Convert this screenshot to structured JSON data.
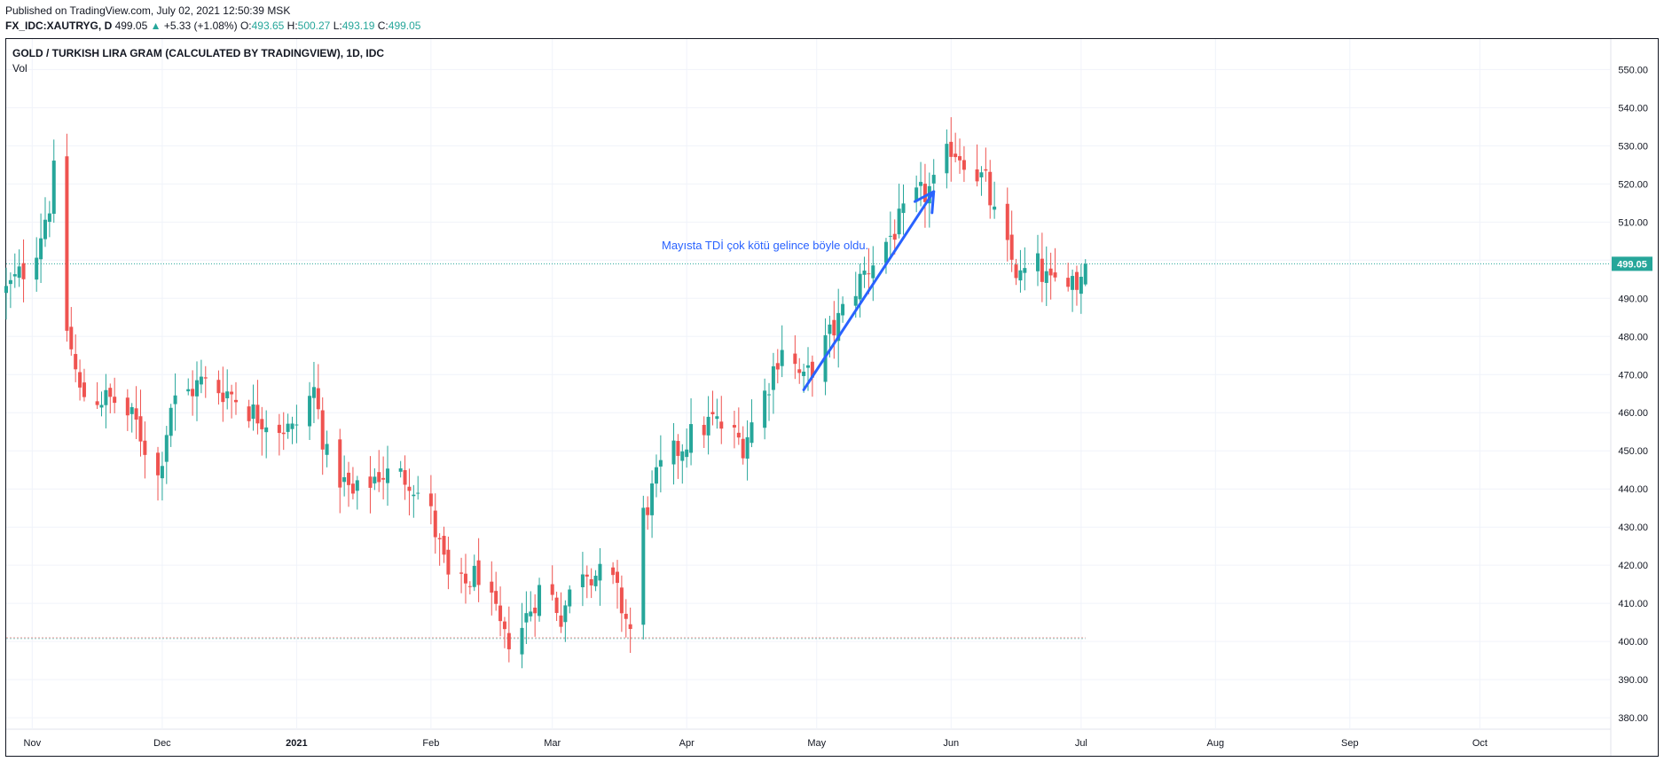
{
  "header": {
    "published": "Published on TradingView.com, July 02, 2021 12:50:39 MSK",
    "symbol": "FX_IDC:XAUTRYG, D",
    "last": "499.05",
    "change_arrow": "▲",
    "change": "+5.33 (+1.08%)",
    "open_label": "O:",
    "open": "493.65",
    "high_label": "H:",
    "high": "500.27",
    "low_label": "L:",
    "low": "493.19",
    "close_label": "C:",
    "close": "499.05"
  },
  "legend": {
    "title": "GOLD / TURKISH LIRA GRAM (CALCULATED BY TRADINGVIEW), 1D, IDC",
    "vol": "Vol"
  },
  "colors": {
    "up": "#26a69a",
    "down": "#ef5350",
    "grid": "#f0f3fa",
    "axis_text": "#131722",
    "price_line": "#26a69a",
    "annotation": "#2962ff"
  },
  "annotation": {
    "text": "Mayısta TDİ çok kötü gelince böyle oldu."
  },
  "chart_data": {
    "type": "candlestick",
    "y_axis_side": "right",
    "ylim": [
      377,
      558
    ],
    "yticks": [
      "380.00",
      "390.00",
      "400.00",
      "410.00",
      "420.00",
      "430.00",
      "440.00",
      "450.00",
      "460.00",
      "470.00",
      "480.00",
      "490.00",
      "500.00",
      "510.00",
      "520.00",
      "530.00",
      "540.00",
      "550.00"
    ],
    "xlim": [
      "2020-10-26",
      "2021-10-31"
    ],
    "xticks": [
      {
        "date": "2020-11-01",
        "label": "Nov",
        "bold": false
      },
      {
        "date": "2020-12-01",
        "label": "Dec",
        "bold": false
      },
      {
        "date": "2021-01-01",
        "label": "2021",
        "bold": true
      },
      {
        "date": "2021-02-01",
        "label": "Feb",
        "bold": false
      },
      {
        "date": "2021-03-01",
        "label": "Mar",
        "bold": false
      },
      {
        "date": "2021-04-01",
        "label": "Apr",
        "bold": false
      },
      {
        "date": "2021-05-01",
        "label": "May",
        "bold": false
      },
      {
        "date": "2021-06-01",
        "label": "Jun",
        "bold": false
      },
      {
        "date": "2021-07-01",
        "label": "Jul",
        "bold": false
      },
      {
        "date": "2021-08-01",
        "label": "Aug",
        "bold": false
      },
      {
        "date": "2021-09-01",
        "label": "Sep",
        "bold": false
      },
      {
        "date": "2021-10-01",
        "label": "Oct",
        "bold": false
      }
    ],
    "last_price": 499.05,
    "last_price_label": "499.05",
    "support_level": 401,
    "arrow_from": {
      "date": "2021-04-28",
      "price": 466
    },
    "arrow_to": {
      "date": "2021-05-28",
      "price": 518
    },
    "closes_start": "2020-10-26",
    "closes_end": "2021-07-02",
    "closes": [
      {
        "date": "2020-10-26",
        "c": 492
      },
      {
        "date": "2020-11-01",
        "c": 500
      },
      {
        "date": "2020-11-05",
        "c": 515
      },
      {
        "date": "2020-11-08",
        "c": 537
      },
      {
        "date": "2020-11-09",
        "c": 482
      },
      {
        "date": "2020-11-12",
        "c": 465
      },
      {
        "date": "2020-11-20",
        "c": 463
      },
      {
        "date": "2020-11-25",
        "c": 457
      },
      {
        "date": "2020-11-30",
        "c": 443
      },
      {
        "date": "2020-12-03",
        "c": 462
      },
      {
        "date": "2020-12-10",
        "c": 468
      },
      {
        "date": "2020-12-17",
        "c": 465
      },
      {
        "date": "2020-12-22",
        "c": 460
      },
      {
        "date": "2020-12-31",
        "c": 455
      },
      {
        "date": "2021-01-05",
        "c": 466
      },
      {
        "date": "2021-01-08",
        "c": 448
      },
      {
        "date": "2021-01-14",
        "c": 438
      },
      {
        "date": "2021-01-20",
        "c": 444
      },
      {
        "date": "2021-01-27",
        "c": 443
      },
      {
        "date": "2021-02-01",
        "c": 433
      },
      {
        "date": "2021-02-06",
        "c": 412
      },
      {
        "date": "2021-02-12",
        "c": 418
      },
      {
        "date": "2021-02-18",
        "c": 400
      },
      {
        "date": "2021-02-22",
        "c": 404
      },
      {
        "date": "2021-02-27",
        "c": 416
      },
      {
        "date": "2021-03-03",
        "c": 407
      },
      {
        "date": "2021-03-08",
        "c": 420
      },
      {
        "date": "2021-03-15",
        "c": 415
      },
      {
        "date": "2021-03-19",
        "c": 403
      },
      {
        "date": "2021-03-22",
        "c": 433
      },
      {
        "date": "2021-03-26",
        "c": 445
      },
      {
        "date": "2021-04-01",
        "c": 453
      },
      {
        "date": "2021-04-07",
        "c": 458
      },
      {
        "date": "2021-04-14",
        "c": 452
      },
      {
        "date": "2021-04-19",
        "c": 465
      },
      {
        "date": "2021-04-23",
        "c": 478
      },
      {
        "date": "2021-04-28",
        "c": 468
      },
      {
        "date": "2021-05-05",
        "c": 482
      },
      {
        "date": "2021-05-10",
        "c": 493
      },
      {
        "date": "2021-05-14",
        "c": 500
      },
      {
        "date": "2021-05-19",
        "c": 508
      },
      {
        "date": "2021-05-24",
        "c": 516
      },
      {
        "date": "2021-05-29",
        "c": 520
      },
      {
        "date": "2021-06-01",
        "c": 530
      },
      {
        "date": "2021-06-05",
        "c": 526
      },
      {
        "date": "2021-06-09",
        "c": 520
      },
      {
        "date": "2021-06-12",
        "c": 507
      },
      {
        "date": "2021-06-17",
        "c": 495
      },
      {
        "date": "2021-06-20",
        "c": 500
      },
      {
        "date": "2021-06-24",
        "c": 493
      },
      {
        "date": "2021-06-28",
        "c": 497
      },
      {
        "date": "2021-06-30",
        "c": 494
      },
      {
        "date": "2021-07-02",
        "c": 499.05
      }
    ]
  }
}
